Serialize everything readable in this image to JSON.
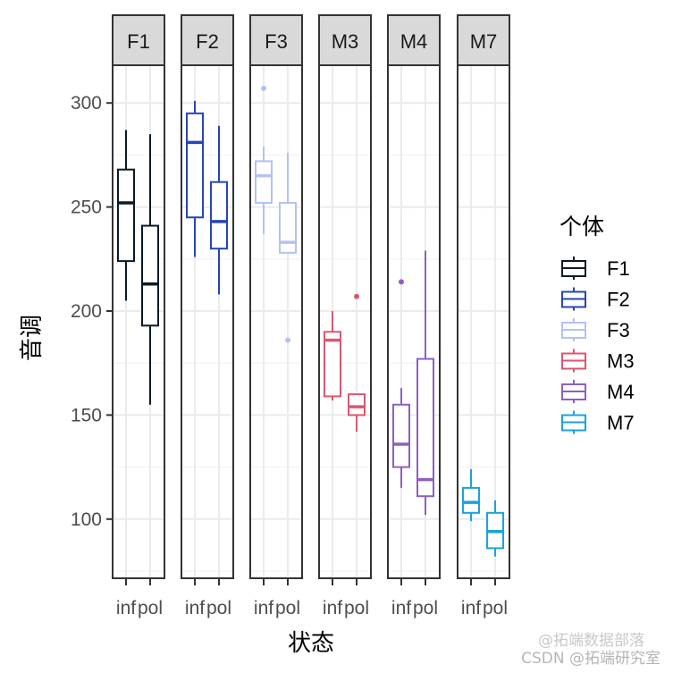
{
  "chart_data": {
    "type": "boxplot",
    "title": "",
    "xlabel": "状态",
    "ylabel": "音调",
    "ylim": [
      72,
      318
    ],
    "yticks": [
      100,
      150,
      200,
      250,
      300
    ],
    "grid": true,
    "facet_by": "个体",
    "categories": [
      "inf",
      "pol"
    ],
    "legend": {
      "title": "个体",
      "position": "right",
      "entries": [
        "F1",
        "F2",
        "F3",
        "M3",
        "M4",
        "M7"
      ]
    },
    "series": [
      {
        "name": "F1",
        "color": "#0b1a27",
        "boxes": [
          {
            "x": "inf",
            "whisker_low": 205,
            "q1": 224,
            "median": 252,
            "q3": 268,
            "whisker_high": 287,
            "outliers": []
          },
          {
            "x": "pol",
            "whisker_low": 155,
            "q1": 193,
            "median": 213,
            "q3": 241,
            "whisker_high": 285,
            "outliers": []
          }
        ]
      },
      {
        "name": "F2",
        "color": "#2744b8",
        "boxes": [
          {
            "x": "inf",
            "whisker_low": 226,
            "q1": 245,
            "median": 281,
            "q3": 295,
            "whisker_high": 301,
            "outliers": []
          },
          {
            "x": "pol",
            "whisker_low": 208,
            "q1": 230,
            "median": 243,
            "q3": 262,
            "whisker_high": 289,
            "outliers": []
          }
        ]
      },
      {
        "name": "F3",
        "color": "#b3c2f2",
        "boxes": [
          {
            "x": "inf",
            "whisker_low": 237,
            "q1": 252,
            "median": 265,
            "q3": 272,
            "whisker_high": 279,
            "outliers": [
              307
            ]
          },
          {
            "x": "pol",
            "whisker_low": 228,
            "q1": 228,
            "median": 233,
            "q3": 252,
            "whisker_high": 276,
            "outliers": [
              186
            ]
          }
        ]
      },
      {
        "name": "M3",
        "color": "#dc5670",
        "boxes": [
          {
            "x": "inf",
            "whisker_low": 157,
            "q1": 159,
            "median": 186,
            "q3": 190,
            "whisker_high": 200,
            "outliers": []
          },
          {
            "x": "pol",
            "whisker_low": 142,
            "q1": 150,
            "median": 154,
            "q3": 160,
            "whisker_high": 160,
            "outliers": [
              207
            ]
          }
        ]
      },
      {
        "name": "M4",
        "color": "#8e5fc0",
        "boxes": [
          {
            "x": "inf",
            "whisker_low": 115,
            "q1": 125,
            "median": 136,
            "q3": 155,
            "whisker_high": 163,
            "outliers": [
              214
            ]
          },
          {
            "x": "pol",
            "whisker_low": 102,
            "q1": 111,
            "median": 119,
            "q3": 177,
            "whisker_high": 229,
            "outliers": []
          }
        ]
      },
      {
        "name": "M7",
        "color": "#1aa3dc",
        "boxes": [
          {
            "x": "inf",
            "whisker_low": 99,
            "q1": 103,
            "median": 108,
            "q3": 115,
            "whisker_high": 124,
            "outliers": []
          },
          {
            "x": "pol",
            "whisker_low": 82,
            "q1": 86,
            "median": 94,
            "q3": 103,
            "whisker_high": 109,
            "outliers": []
          }
        ]
      }
    ]
  },
  "watermark": {
    "line1": "@拓端数据部落",
    "line2": "CSDN @拓端研究室"
  }
}
